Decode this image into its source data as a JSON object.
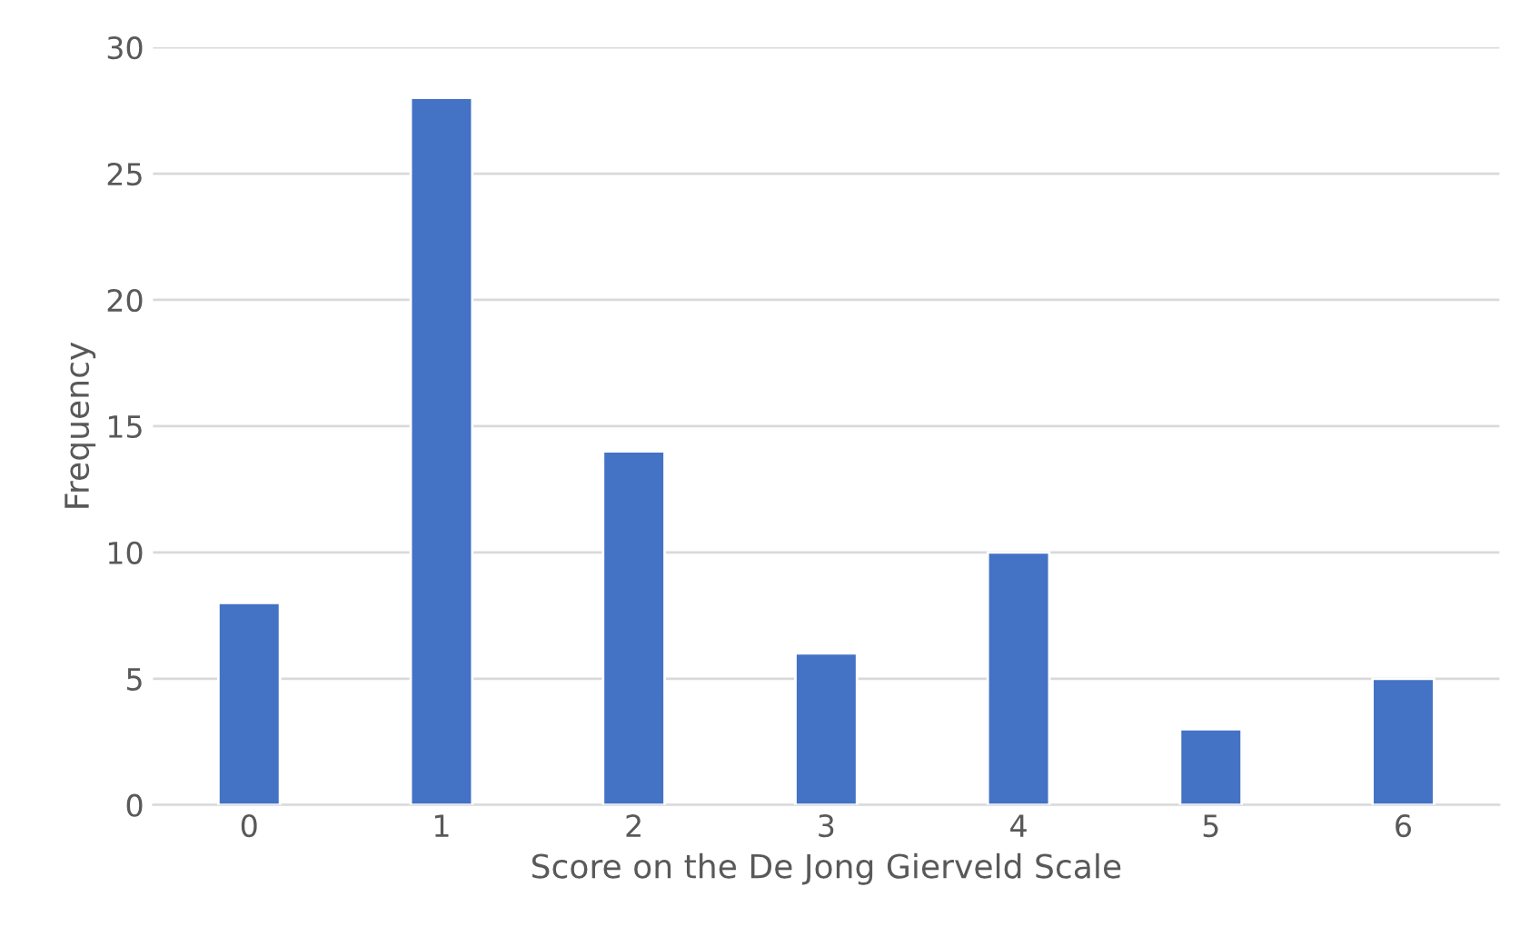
{
  "chart_data": {
    "type": "bar",
    "xlabel": "Score on the De Jong Gierveld Scale",
    "ylabel": "Frequency",
    "categories": [
      "0",
      "1",
      "2",
      "3",
      "4",
      "5",
      "6"
    ],
    "values": [
      8,
      28,
      14,
      6,
      10,
      3,
      5
    ],
    "color": "#4472c4",
    "ylim": [
      0,
      30
    ],
    "yticks": [
      0,
      5,
      10,
      15,
      20,
      25,
      30
    ],
    "grid": "y"
  }
}
